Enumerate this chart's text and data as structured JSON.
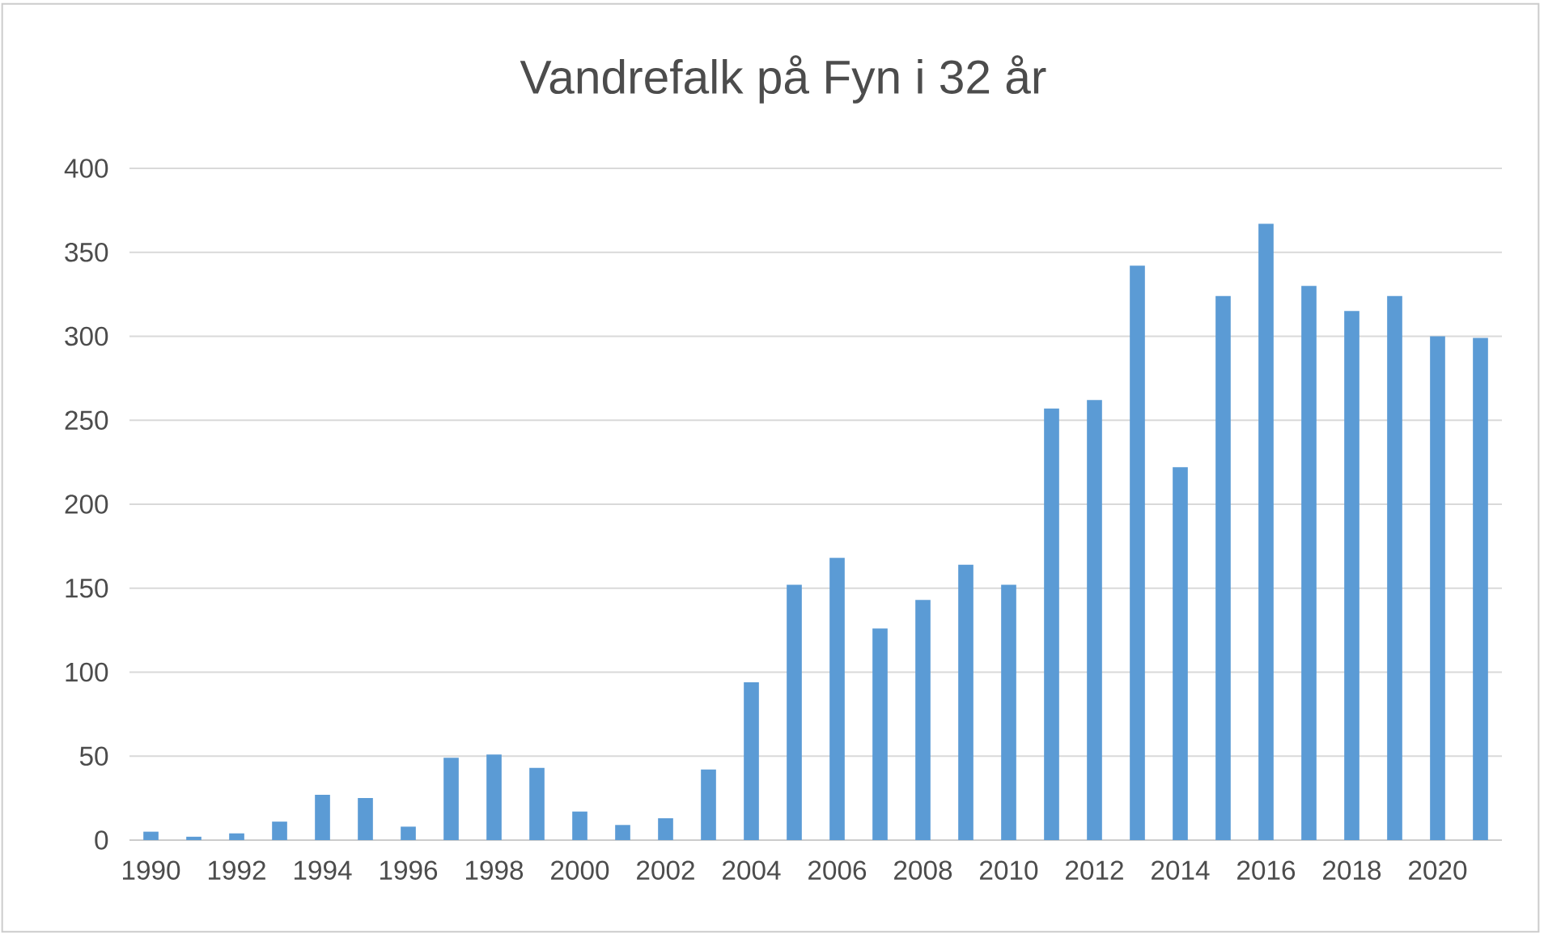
{
  "chart_data": {
    "type": "bar",
    "title": "Vandrefalk på Fyn i 32 år",
    "categories": [
      "1990",
      null,
      "1992",
      null,
      "1994",
      null,
      "1996",
      null,
      "1998",
      null,
      "2000",
      null,
      "2002",
      null,
      "2004",
      null,
      "2006",
      null,
      "2008",
      null,
      "2010",
      null,
      "2012",
      null,
      "2014",
      null,
      "2016",
      null,
      "2018",
      null,
      "2020",
      null
    ],
    "values": [
      5,
      2,
      4,
      11,
      27,
      25,
      8,
      49,
      51,
      43,
      17,
      9,
      13,
      42,
      94,
      152,
      168,
      126,
      143,
      164,
      152,
      257,
      262,
      342,
      222,
      324,
      367,
      330,
      315,
      324,
      300,
      299
    ],
    "color": "#5b9bd5",
    "ylim": [
      0,
      400
    ],
    "yticks": [
      0,
      50,
      100,
      150,
      200,
      250,
      300,
      350,
      400
    ],
    "grid": "y"
  }
}
